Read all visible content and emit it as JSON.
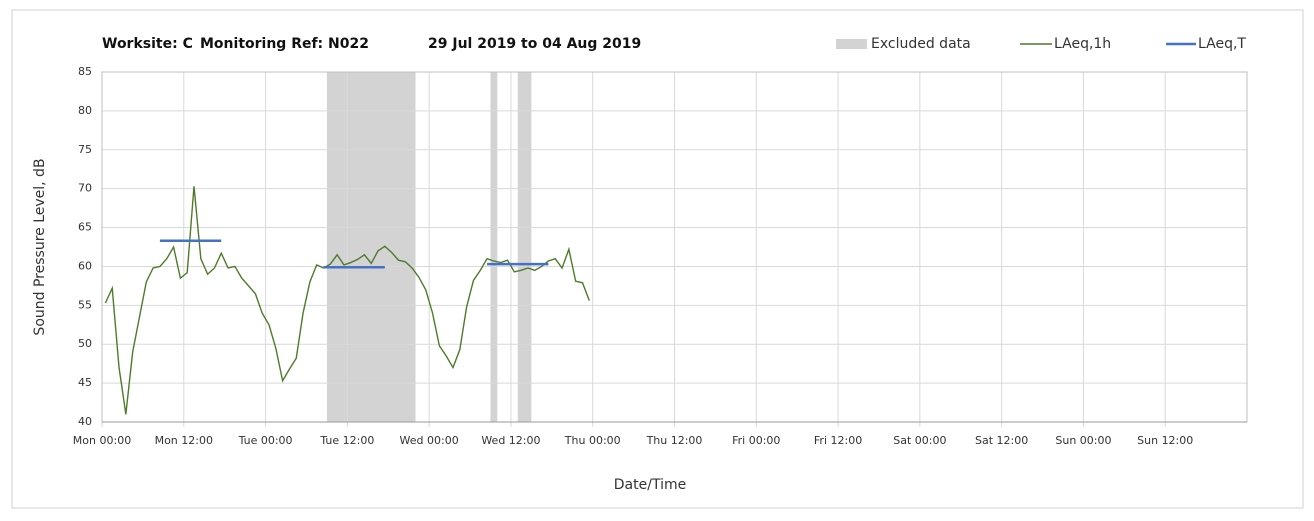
{
  "chart_data": {
    "type": "line",
    "title": [
      "Worksite: C",
      "Monitoring Ref: N022",
      "29 Jul 2019 to 04 Aug 2019"
    ],
    "xlabel": "Date/Time",
    "ylabel": "Sound Pressure Level, dB",
    "xlim": [
      0,
      168
    ],
    "xticks": [
      {
        "value": 0,
        "label": "Mon 00:00"
      },
      {
        "value": 12,
        "label": "Mon 12:00"
      },
      {
        "value": 24,
        "label": "Tue 00:00"
      },
      {
        "value": 36,
        "label": "Tue 12:00"
      },
      {
        "value": 48,
        "label": "Wed 00:00"
      },
      {
        "value": 60,
        "label": "Wed 12:00"
      },
      {
        "value": 72,
        "label": "Thu 00:00"
      },
      {
        "value": 84,
        "label": "Thu 12:00"
      },
      {
        "value": 96,
        "label": "Fri 00:00"
      },
      {
        "value": 108,
        "label": "Fri 12:00"
      },
      {
        "value": 120,
        "label": "Sat 00:00"
      },
      {
        "value": 132,
        "label": "Sat 12:00"
      },
      {
        "value": 144,
        "label": "Sun 00:00"
      },
      {
        "value": 156,
        "label": "Sun 12:00"
      }
    ],
    "ylim": [
      40,
      85
    ],
    "yticks": [
      40,
      45,
      50,
      55,
      60,
      65,
      70,
      75,
      80,
      85
    ],
    "grid": true,
    "excluded": {
      "name": "Excluded data",
      "color": "#d3d3d3",
      "ranges": [
        [
          33,
          46
        ],
        [
          57,
          58
        ],
        [
          61,
          63
        ]
      ]
    },
    "series": [
      {
        "name": "LAeq,1h",
        "color": "#4e7a2a",
        "x": [
          0.5,
          1.5,
          2.5,
          3.5,
          4.5,
          5.5,
          6.5,
          7.5,
          8.5,
          9.5,
          10.5,
          11.5,
          12.5,
          13.5,
          14.5,
          15.5,
          16.5,
          17.5,
          18.5,
          19.5,
          20.5,
          21.5,
          22.5,
          23.5,
          24.5,
          25.5,
          26.5,
          27.5,
          28.5,
          29.5,
          30.5,
          31.5,
          32.5,
          33.5,
          34.5,
          35.5,
          36.5,
          37.5,
          38.5,
          39.5,
          40.5,
          41.5,
          42.5,
          43.5,
          44.5,
          45.5,
          46.5,
          47.5,
          48.5,
          49.5,
          50.5,
          51.5,
          52.5,
          53.5,
          54.5,
          55.5,
          56.5,
          57.5,
          58.5,
          59.5,
          60.5,
          61.5,
          62.5,
          63.5,
          64.5,
          65.5,
          66.5,
          67.5,
          68.5,
          69.5,
          70.5,
          71.5
        ],
        "values": [
          55.3,
          57.2,
          47,
          41,
          49,
          53.5,
          58,
          59.8,
          60,
          61,
          62.5,
          58.5,
          59.2,
          70.3,
          61,
          59,
          59.8,
          61.7,
          59.8,
          60,
          58.5,
          57.5,
          56.5,
          54,
          52.5,
          49.5,
          45.3,
          46.8,
          48.2,
          54,
          58,
          60.2,
          59.8,
          60.3,
          61.5,
          60.2,
          60.5,
          60.9,
          61.5,
          60.4,
          62,
          62.6,
          61.8,
          60.8,
          60.6,
          59.8,
          58.6,
          57,
          54,
          49.8,
          48.5,
          47,
          49.3,
          54.8,
          58.2,
          59.5,
          61,
          60.7,
          60.5,
          60.8,
          59.3,
          59.5,
          59.8,
          59.5,
          60,
          60.7,
          61,
          59.8,
          62.2,
          58.1,
          57.9,
          55.6
        ]
      },
      {
        "name": "LAeq,T",
        "color": "#4472c4",
        "segments": [
          {
            "x": [
              8.5,
              17.5
            ],
            "value": 63.3
          },
          {
            "x": [
              32.5,
              41.5
            ],
            "value": 59.9
          },
          {
            "x": [
              56.5,
              65.5
            ],
            "value": 60.3
          }
        ]
      }
    ]
  }
}
